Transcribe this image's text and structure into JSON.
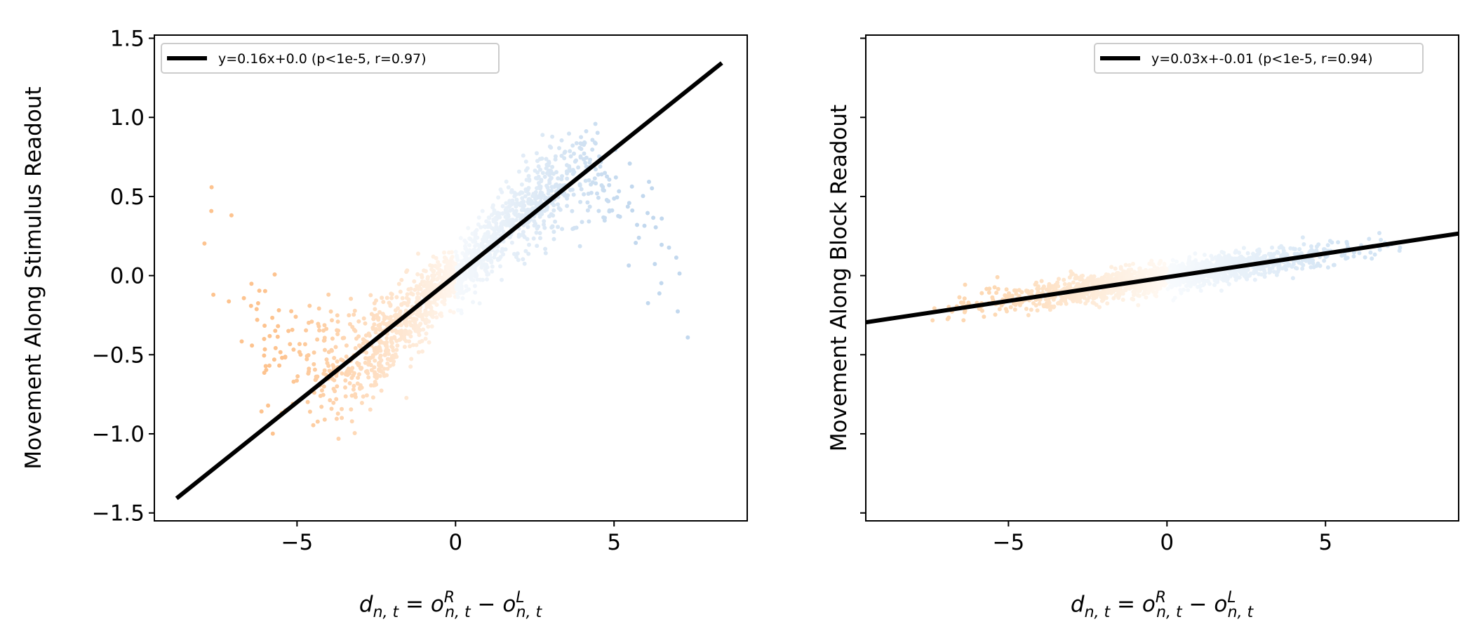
{
  "chart_data": [
    {
      "type": "scatter",
      "ylabel": "Movement Along Stimulus Readout",
      "xlabel_latex": "d_{n,t} = o^R_{n,t} - o^L_{n,t}",
      "xlim": [
        -9.5,
        9.2
      ],
      "ylim": [
        -1.55,
        1.52
      ],
      "xticks": [
        -5,
        0,
        5
      ],
      "xtick_labels": [
        "−5",
        "0",
        "5"
      ],
      "yticks": [
        -1.5,
        -1.0,
        -0.5,
        0.0,
        0.5,
        1.0,
        1.5
      ],
      "ytick_labels": [
        "−1.5",
        "−1.0",
        "−0.5",
        "0.0",
        "0.5",
        "1.0",
        "1.5"
      ],
      "grid": false,
      "legend_position": "top-left",
      "fit": {
        "label": "y=0.16x+0.0 (p<1e-5, r=0.97)",
        "slope": 0.16,
        "intercept": 0.0,
        "x_range": [
          -8.8,
          8.4
        ]
      },
      "scatter_model": {
        "x_range": [
          -8.2,
          7.4
        ],
        "s_curve": true,
        "spread": 0.16
      },
      "colors": {
        "negative": "#fdc38f",
        "positive": "#c2d8ee",
        "fit_line": "#000000"
      }
    },
    {
      "type": "scatter",
      "ylabel": "Movement Along Block Readout",
      "xlabel_latex": "d_{n,t} = o^R_{n,t} - o^L_{n,t}",
      "xlim": [
        -9.5,
        9.2
      ],
      "ylim": [
        -1.55,
        1.52
      ],
      "xticks": [
        -5,
        0,
        5
      ],
      "xtick_labels": [
        "−5",
        "0",
        "5"
      ],
      "yticks": [
        -1.5,
        -1.0,
        -0.5,
        0.0,
        0.5,
        1.0,
        1.5
      ],
      "ytick_labels": [],
      "grid": false,
      "legend_position": "top-right",
      "fit": {
        "label": "y=0.03x+-0.01 (p<1e-5, r=0.94)",
        "slope": 0.03,
        "intercept": -0.01,
        "x_range": [
          -9.5,
          9.2
        ]
      },
      "scatter_model": {
        "x_range": [
          -7.4,
          7.4
        ],
        "s_curve": false,
        "spread": 0.045
      },
      "colors": {
        "negative": "#fdd8b3",
        "positive": "#d3e4f4",
        "fit_line": "#000000"
      }
    }
  ]
}
